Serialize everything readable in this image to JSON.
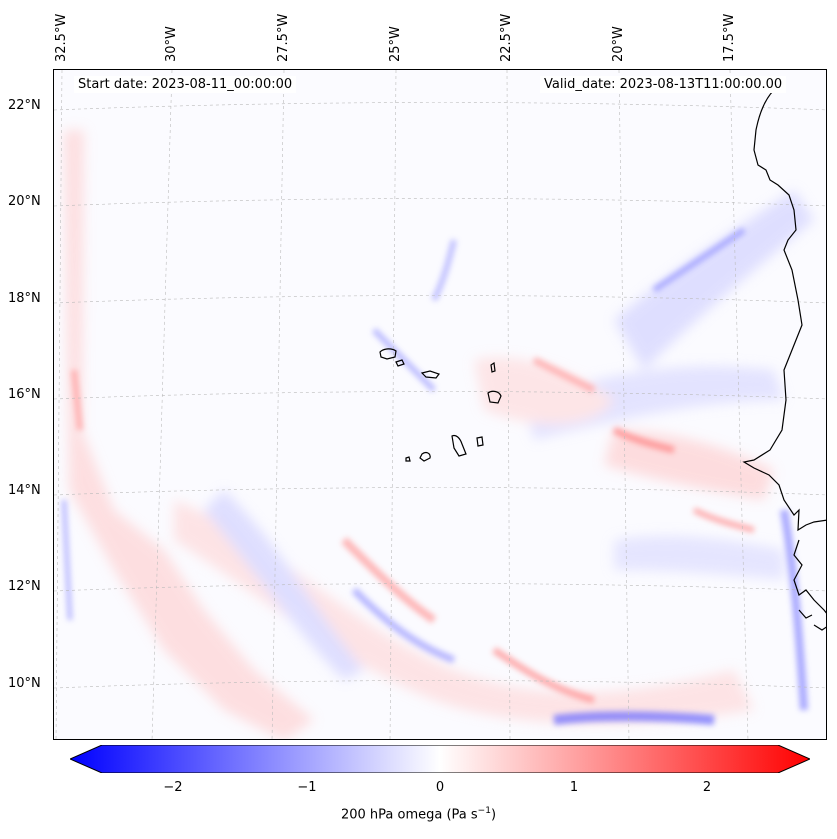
{
  "map": {
    "start_date": "Start date: 2023-08-11_00:00:00",
    "valid_date": "Valid_date: 2023-08-13T11:00:00.00",
    "lon_ticks": [
      "32.5°W",
      "30°W",
      "27.5°W",
      "25°W",
      "22.5°W",
      "20°W",
      "17.5°W"
    ],
    "lat_ticks": [
      "22°N",
      "20°N",
      "18°N",
      "16°N",
      "14°N",
      "12°N",
      "10°N"
    ],
    "colorbar": {
      "ticks": [
        "−2",
        "−1",
        "0",
        "1",
        "2"
      ],
      "label": "200 hPa omega (Pa s",
      "label_unit_sup": "−1",
      "label_close": ")",
      "vmin": -2.6,
      "vmax": 2.6,
      "colors": {
        "negative": "#0000ff",
        "zero": "#ffffff",
        "positive": "#ff0000"
      }
    },
    "colors": {
      "coastline": "#000000",
      "grid": "#bbbbbb"
    }
  }
}
